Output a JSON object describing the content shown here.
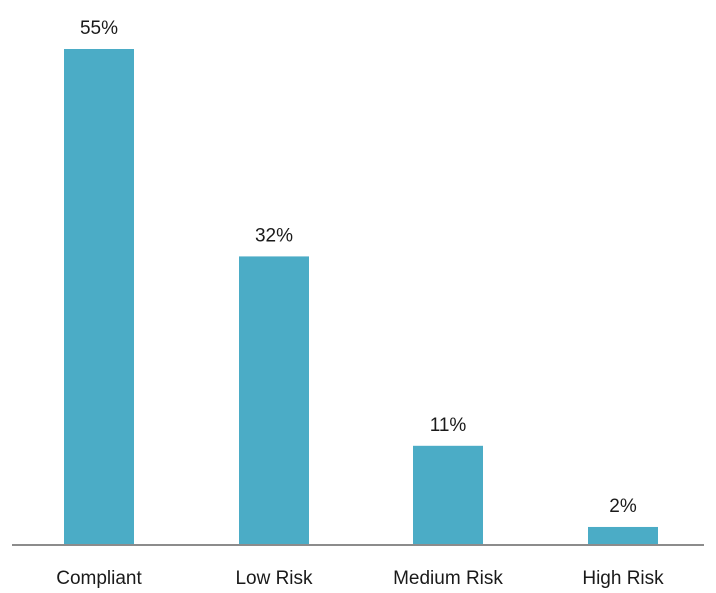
{
  "chart_data": {
    "type": "bar",
    "categories": [
      "Compliant",
      "Low Risk",
      "Medium Risk",
      "High Risk"
    ],
    "values": [
      55,
      32,
      11,
      2
    ],
    "data_labels": [
      "55%",
      "32%",
      "11%",
      "2%"
    ],
    "title": "",
    "xlabel": "",
    "ylabel": "",
    "ylim": [
      0,
      55
    ],
    "grid": false,
    "legend": "none",
    "bar_color": "#4BACC6",
    "axis_color": "#8C8C8C"
  }
}
